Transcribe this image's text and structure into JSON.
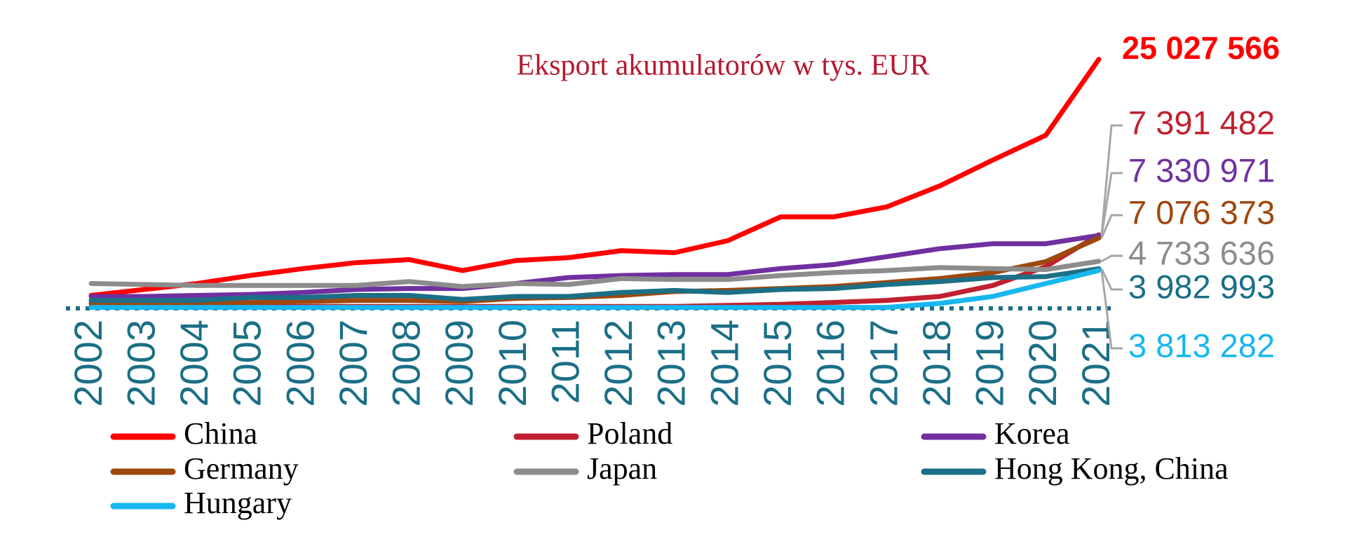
{
  "chart_data": {
    "type": "line",
    "title": "Eksport akumulatorów w tys. EUR",
    "x": [
      2002,
      2003,
      2004,
      2005,
      2006,
      2007,
      2008,
      2009,
      2010,
      2011,
      2012,
      2013,
      2014,
      2015,
      2016,
      2017,
      2018,
      2019,
      2020,
      2021
    ],
    "ylim": [
      0,
      25000000
    ],
    "series": [
      {
        "name": "China",
        "color": "#ff0000",
        "end_label": "25 027 566",
        "values": [
          1300000,
          1900000,
          2500000,
          3300000,
          4000000,
          4600000,
          4900000,
          3800000,
          4800000,
          5100000,
          5800000,
          5600000,
          6800000,
          9200000,
          9200000,
          10200000,
          12300000,
          14900000,
          17400000,
          25027566
        ]
      },
      {
        "name": "Poland",
        "color": "#c0202f",
        "end_label": "7 391 482",
        "values": [
          200000,
          200000,
          200000,
          200000,
          200000,
          200000,
          200000,
          200000,
          200000,
          200000,
          200000,
          200000,
          300000,
          400000,
          600000,
          800000,
          1200000,
          2300000,
          4200000,
          7391482
        ]
      },
      {
        "name": "Korea",
        "color": "#7030a0",
        "end_label": "7 330 971",
        "values": [
          1200000,
          1200000,
          1300000,
          1400000,
          1600000,
          1900000,
          2000000,
          2000000,
          2500000,
          3100000,
          3300000,
          3400000,
          3400000,
          4000000,
          4400000,
          5200000,
          6000000,
          6500000,
          6500000,
          7330971
        ]
      },
      {
        "name": "Germany",
        "color": "#9e480e",
        "end_label": "7 076 373",
        "values": [
          500000,
          500000,
          500000,
          600000,
          700000,
          800000,
          800000,
          700000,
          1000000,
          1100000,
          1300000,
          1700000,
          1800000,
          2000000,
          2200000,
          2600000,
          3000000,
          3600000,
          4700000,
          7076373
        ]
      },
      {
        "name": "Japan",
        "color": "#8c8c8c",
        "end_label": "4 733 636",
        "values": [
          2500000,
          2400000,
          2300000,
          2300000,
          2300000,
          2300000,
          2700000,
          2200000,
          2500000,
          2400000,
          3000000,
          2900000,
          2900000,
          3300000,
          3600000,
          3800000,
          4100000,
          4000000,
          3900000,
          4733636
        ]
      },
      {
        "name": "Hong Kong, China",
        "color": "#1b6f86",
        "end_label": "3 982 993",
        "values": [
          800000,
          800000,
          800000,
          1100000,
          1100000,
          1300000,
          1300000,
          900000,
          1200000,
          1200000,
          1600000,
          1800000,
          1600000,
          1900000,
          2000000,
          2400000,
          2700000,
          3100000,
          3200000,
          3982993
        ]
      },
      {
        "name": "Hungary",
        "color": "#17b7ef",
        "end_label": "3 813 282",
        "values": [
          100000,
          100000,
          100000,
          100000,
          100000,
          100000,
          100000,
          100000,
          100000,
          100000,
          100000,
          100000,
          100000,
          100000,
          100000,
          100000,
          500000,
          1200000,
          2500000,
          3813282
        ]
      }
    ]
  }
}
